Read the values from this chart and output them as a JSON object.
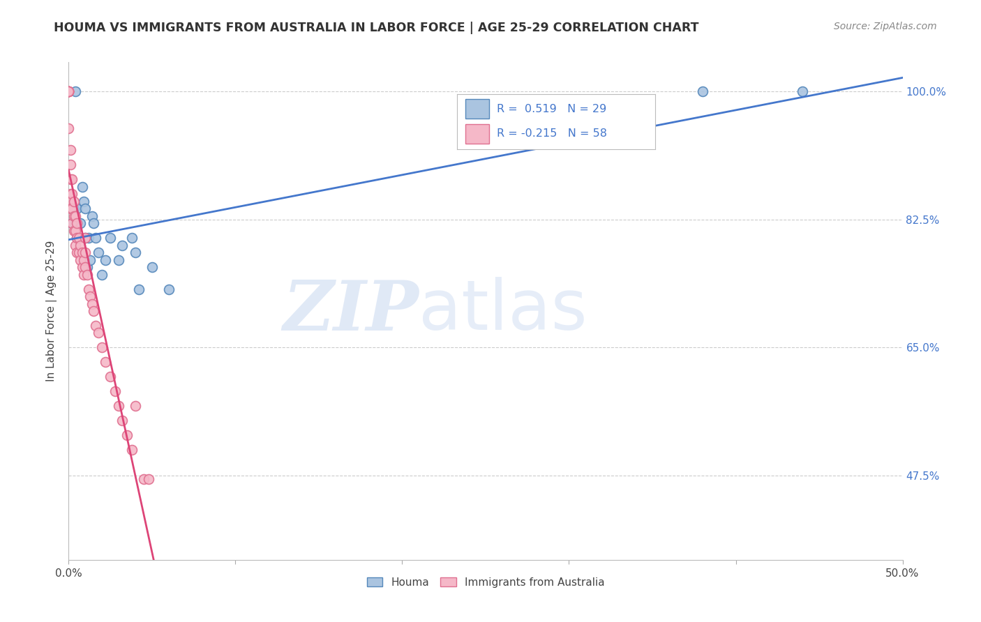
{
  "title": "HOUMA VS IMMIGRANTS FROM AUSTRALIA IN LABOR FORCE | AGE 25-29 CORRELATION CHART",
  "source": "Source: ZipAtlas.com",
  "ylabel": "In Labor Force | Age 25-29",
  "xlim": [
    0.0,
    0.5
  ],
  "ylim": [
    0.36,
    1.04
  ],
  "xtick_positions": [
    0.0,
    0.1,
    0.2,
    0.3,
    0.4,
    0.5
  ],
  "xticklabels": [
    "0.0%",
    "",
    "",
    "",
    "",
    "50.0%"
  ],
  "ytick_positions": [
    0.475,
    0.65,
    0.825,
    1.0
  ],
  "ytick_labels": [
    "47.5%",
    "65.0%",
    "82.5%",
    "100.0%"
  ],
  "grid_color": "#cccccc",
  "background_color": "#ffffff",
  "houma_color": "#aac4e0",
  "houma_edge_color": "#5588bb",
  "australia_color": "#f5b8c8",
  "australia_edge_color": "#e07090",
  "houma_line_color": "#4477cc",
  "australia_line_color": "#dd4477",
  "australia_line_dashed_color": "#cccccc",
  "legend_text_color": "#4477cc",
  "watermark_zip": "ZIP",
  "watermark_atlas": "atlas",
  "houma_x": [
    0.002,
    0.003,
    0.004,
    0.005,
    0.005,
    0.007,
    0.008,
    0.009,
    0.01,
    0.01,
    0.011,
    0.012,
    0.013,
    0.014,
    0.015,
    0.016,
    0.018,
    0.02,
    0.022,
    0.025,
    0.03,
    0.032,
    0.038,
    0.04,
    0.042,
    0.05,
    0.06,
    0.38,
    0.44
  ],
  "houma_y": [
    0.82,
    0.84,
    1.0,
    0.84,
    0.8,
    0.82,
    0.87,
    0.85,
    0.84,
    0.8,
    0.76,
    0.8,
    0.77,
    0.83,
    0.82,
    0.8,
    0.78,
    0.75,
    0.77,
    0.8,
    0.77,
    0.79,
    0.8,
    0.78,
    0.73,
    0.76,
    0.73,
    1.0,
    1.0
  ],
  "australia_x": [
    0.0,
    0.0,
    0.0,
    0.0,
    0.0,
    0.0,
    0.0,
    0.0,
    0.0,
    0.001,
    0.001,
    0.001,
    0.001,
    0.001,
    0.001,
    0.002,
    0.002,
    0.002,
    0.002,
    0.003,
    0.003,
    0.003,
    0.004,
    0.004,
    0.004,
    0.005,
    0.005,
    0.005,
    0.006,
    0.006,
    0.007,
    0.007,
    0.008,
    0.008,
    0.009,
    0.009,
    0.01,
    0.01,
    0.01,
    0.011,
    0.012,
    0.013,
    0.014,
    0.015,
    0.016,
    0.018,
    0.02,
    0.022,
    0.025,
    0.028,
    0.03,
    0.032,
    0.035,
    0.038,
    0.04,
    0.045,
    0.048
  ],
  "australia_y": [
    1.0,
    1.0,
    1.0,
    1.0,
    1.0,
    1.0,
    1.0,
    1.0,
    0.95,
    0.92,
    0.9,
    0.88,
    0.86,
    0.85,
    0.84,
    0.88,
    0.86,
    0.84,
    0.82,
    0.85,
    0.83,
    0.81,
    0.83,
    0.81,
    0.79,
    0.82,
    0.8,
    0.78,
    0.8,
    0.78,
    0.79,
    0.77,
    0.78,
    0.76,
    0.77,
    0.75,
    0.8,
    0.78,
    0.76,
    0.75,
    0.73,
    0.72,
    0.71,
    0.7,
    0.68,
    0.67,
    0.65,
    0.63,
    0.61,
    0.59,
    0.57,
    0.55,
    0.53,
    0.51,
    0.57,
    0.47,
    0.47
  ]
}
